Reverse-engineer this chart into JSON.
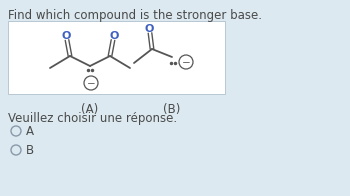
{
  "title": "Find which compound is the stronger base.",
  "bg_color": "#dce9f0",
  "label_A": "(A)",
  "label_B": "(B)",
  "prompt": "Veuillez choisir une réponse.",
  "option_A": "A",
  "option_B": "B",
  "title_fontsize": 8.5,
  "label_fontsize": 8.5,
  "prompt_fontsize": 8.5,
  "option_fontsize": 8.5,
  "text_color": "#4a4a4a",
  "bond_color": "#555555",
  "o_color": "#4060c0",
  "charge_color": "#555555"
}
